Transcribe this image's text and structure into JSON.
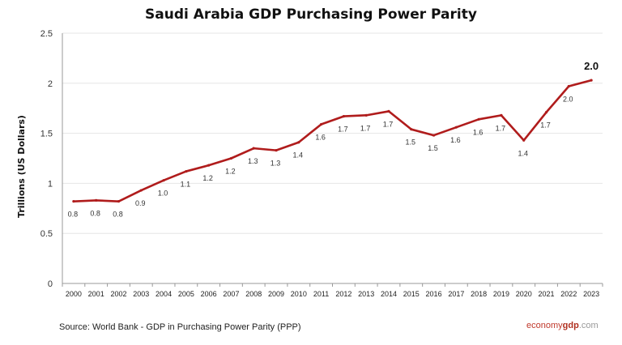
{
  "chart_data": {
    "type": "line",
    "title": "Saudi Arabia GDP Purchasing Power Parity",
    "xlabel": "",
    "ylabel": "Trillions (US Dollars)",
    "ylim": [
      0,
      2.5
    ],
    "yticks": [
      "0",
      "0.5",
      "1",
      "1.5",
      "2",
      "2.5"
    ],
    "grid": true,
    "line_color": "#b01c1c",
    "categories": [
      "2000",
      "2001",
      "2002",
      "2003",
      "2004",
      "2005",
      "2006",
      "2007",
      "2008",
      "2009",
      "2010",
      "2011",
      "2012",
      "2013",
      "2014",
      "2015",
      "2016",
      "2017",
      "2018",
      "2019",
      "2020",
      "2021",
      "2022",
      "2023"
    ],
    "values": [
      0.82,
      0.83,
      0.82,
      0.93,
      1.03,
      1.12,
      1.18,
      1.25,
      1.35,
      1.33,
      1.41,
      1.59,
      1.67,
      1.68,
      1.72,
      1.54,
      1.48,
      1.56,
      1.64,
      1.68,
      1.43,
      1.71,
      1.97,
      2.03
    ],
    "data_labels": [
      "0.8",
      "0.8",
      "0.8",
      "0.9",
      "1.0",
      "1.1",
      "1.2",
      "1.2",
      "1.3",
      "1.3",
      "1.4",
      "1.6",
      "1.7",
      "1.7",
      "1.7",
      "1.5",
      "1.5",
      "1.6",
      "1.6",
      "1.7",
      "1.4",
      "1.7",
      "2.0",
      "2.0"
    ]
  },
  "footer": {
    "source": "Source:  World Bank -  GDP  in Purchasing Power Parity (PPP)",
    "brand_part1": "economy",
    "brand_part2": "gdp",
    "brand_part3": ".com"
  }
}
